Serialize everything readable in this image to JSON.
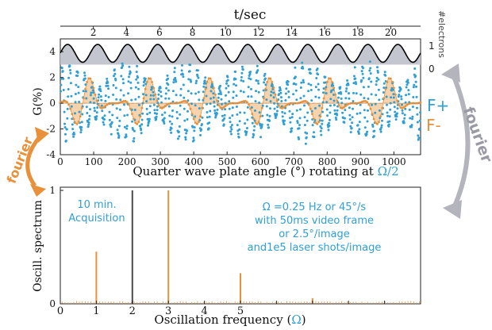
{
  "colors": {
    "blue": "#2f9fd4",
    "orange": "#e8913a",
    "orange_fill": "#f7d3ad",
    "gray": "#4a4a4a",
    "gray_fill": "#c4c6cf",
    "curve": "#000000",
    "arrow_gray": "#b4b4bc",
    "omega_blue": "#2f9fd4"
  },
  "top_axis": {
    "title": "t/sec",
    "ticks": [
      "2",
      "4",
      "6",
      "8",
      "10",
      "12",
      "14",
      "16",
      "18",
      "20"
    ]
  },
  "labels": {
    "electrons_axis": "#electrons",
    "electrons_ticks": [
      "1",
      "0"
    ],
    "fourier_right": "fourier",
    "fourier_left": "fourier",
    "f_plus": "F+",
    "f_minus": "F-",
    "annotation_left": [
      "10 min.",
      "Acquisition"
    ],
    "annotation_right": [
      "Ω =0.25 Hz or 45°/s",
      "with 50ms video frame",
      "or 2.5°/image",
      "and1e5 laser shots/image"
    ]
  },
  "chart_data": [
    {
      "type": "line",
      "ylabel": "G(%)",
      "xlabel_text": "Quarter wave plate angle (°) rotating at",
      "xlabel_symbol": "Ω/2",
      "xlim": [
        0,
        1080
      ],
      "ylim": [
        -4,
        5
      ],
      "x_ticks": [
        "0",
        "100",
        "200",
        "300",
        "400",
        "500",
        "600",
        "700",
        "800",
        "900",
        "1000"
      ],
      "y_ticks": [
        "4",
        "2",
        "0",
        "-2",
        "-4"
      ],
      "series": [
        {
          "name": "F+",
          "description_values": {
            "peak_percent": 3,
            "period_deg": 45,
            "envelope_period_deg": 180
          }
        },
        {
          "name": "F-",
          "description_values": {
            "peak_percent": 2.2,
            "period_deg": 90,
            "envelope_period_deg": 180
          }
        }
      ],
      "electrons_curve": {
        "period_deg": 90,
        "max": 1,
        "min": 0
      }
    },
    {
      "type": "bar",
      "ylabel": "Oscill. spectrum",
      "xlabel_text": "Oscillation frequency (",
      "xlabel_symbol": "Ω",
      "xlabel_end": ")",
      "xlim": [
        0,
        10
      ],
      "ylim": [
        0,
        1
      ],
      "x_ticks": [
        "0",
        "1",
        "2",
        "3",
        "4",
        "5"
      ],
      "y_ticks": [
        "1",
        "0"
      ],
      "peaks": [
        {
          "x": 1,
          "value": 0.46,
          "series": "F-"
        },
        {
          "x": 2,
          "value": 1.0,
          "series": "electrons"
        },
        {
          "x": 3,
          "value": 1.0,
          "series": "F-"
        },
        {
          "x": 5,
          "value": 0.27,
          "series": "F-"
        },
        {
          "x": 7,
          "value": 0.05,
          "series": "F-"
        }
      ]
    }
  ]
}
